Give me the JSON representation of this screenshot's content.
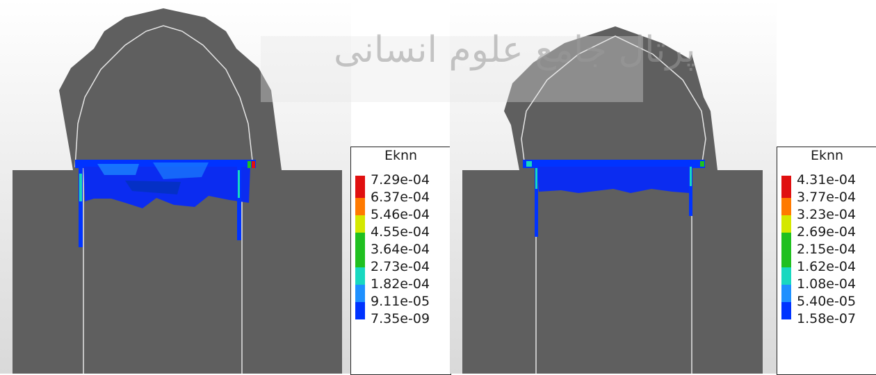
{
  "watermark": "پرتال جامع علوم انسانی",
  "panels": [
    {
      "id": "left",
      "legend": {
        "title": "Eknn",
        "labels": [
          "7.29e-04",
          "6.37e-04",
          "5.46e-04",
          "4.55e-04",
          "3.64e-04",
          "2.73e-04",
          "1.82e-04",
          "9.11e-05",
          "7.35e-09"
        ]
      }
    },
    {
      "id": "right",
      "legend": {
        "title": "Eknn",
        "labels": [
          "4.31e-04",
          "3.77e-04",
          "3.23e-04",
          "2.69e-04",
          "2.15e-04",
          "1.62e-04",
          "1.08e-04",
          "5.40e-05",
          "1.58e-07"
        ]
      }
    }
  ],
  "colors": {
    "scale": [
      "#e01010",
      "#ff7a00",
      "#d4e800",
      "#20c020",
      "#18d8c0",
      "#1e90ff",
      "#0033ff"
    ],
    "body": "#5f5f5f",
    "outline": "#e6e6e6"
  }
}
